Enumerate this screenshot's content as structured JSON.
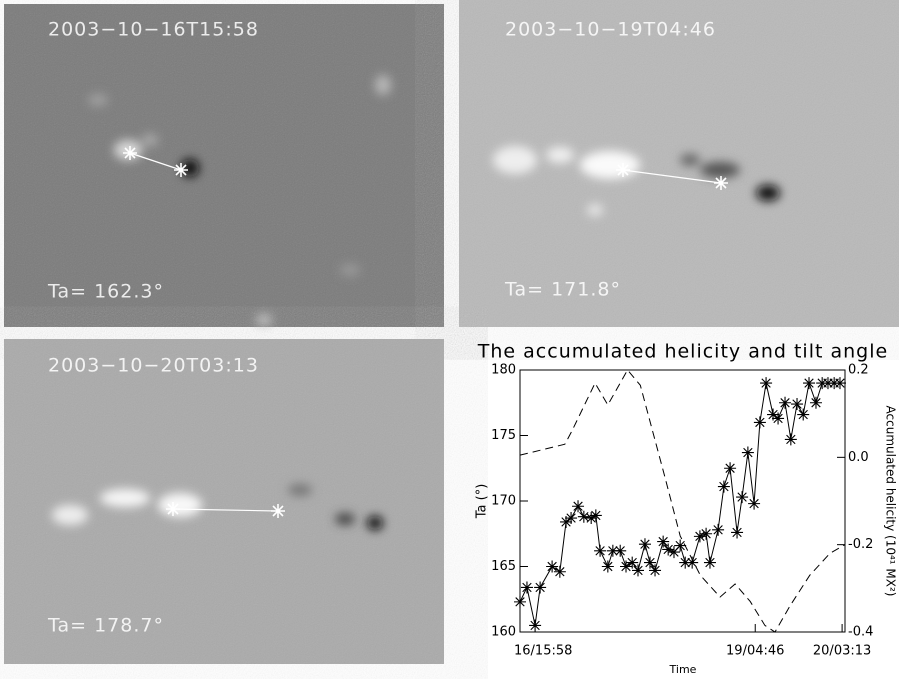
{
  "panels": [
    {
      "time": "2003−10−16T15:58",
      "tilt": "Ta= 162.3°"
    },
    {
      "time": "2003−10−19T04:46",
      "tilt": "Ta= 171.8°"
    },
    {
      "time": "2003−10−20T03:13",
      "tilt": "Ta= 178.7°"
    }
  ],
  "chart_data": {
    "type": "line",
    "title": "The accumulated helicity and tilt angle",
    "xlabel": "Time",
    "ylabel": "Ta (°)",
    "y2label": "Accumulated helicity (10⁴¹ MX²)",
    "xlim": [
      0,
      84
    ],
    "xticks": [
      {
        "value": 0,
        "label": "16/15:58"
      },
      {
        "value": 60.8,
        "label": "19/04:46"
      },
      {
        "value": 83.25,
        "label": "20/03:13"
      }
    ],
    "ylim": [
      160,
      180
    ],
    "yticks": [
      160,
      165,
      170,
      175,
      180
    ],
    "y2lim": [
      -0.4,
      0.2
    ],
    "y2ticks": [
      -0.4,
      -0.2,
      {
        "value": 0,
        "label": "0.0"
      },
      0.2
    ],
    "series": [
      {
        "color": "#000000",
        "style": "solid",
        "marker": "asterisk",
        "axis": "y",
        "x": [
          0,
          1.8,
          3.9,
          5.2,
          8.3,
          10.3,
          11.9,
          13.2,
          15.0,
          16.5,
          18.4,
          19.6,
          20.7,
          22.7,
          24.0,
          25.9,
          27.4,
          29.0,
          30.5,
          32.3,
          33.6,
          34.9,
          37.0,
          38.3,
          39.8,
          41.4,
          42.7,
          44.5,
          46.5,
          48.1,
          49.1,
          51.2,
          52.7,
          54.3,
          56.1,
          57.4,
          58.9,
          60.5,
          62.0,
          63.6,
          65.4,
          66.7,
          68.5,
          70.0,
          71.6,
          73.2,
          74.7,
          76.5,
          78.1,
          79.6,
          81.2,
          82.7
        ],
        "values": [
          162.3,
          163.4,
          160.5,
          163.4,
          165.0,
          164.6,
          168.4,
          168.7,
          169.6,
          168.8,
          168.7,
          168.9,
          166.2,
          165.0,
          166.2,
          166.2,
          165.0,
          165.3,
          164.7,
          166.7,
          165.3,
          164.7,
          166.9,
          166.3,
          166.1,
          166.6,
          165.3,
          165.3,
          167.3,
          167.5,
          165.3,
          167.8,
          171.1,
          172.5,
          167.6,
          170.3,
          173.7,
          169.8,
          176.0,
          179.0,
          176.6,
          176.3,
          177.5,
          174.7,
          177.4,
          176.6,
          179.0,
          177.5,
          179.0,
          179.0,
          179.0,
          179.0
        ]
      },
      {
        "color": "#000000",
        "style": "dashed",
        "axis": "y2",
        "x": [
          0,
          11.6,
          13.4,
          19.4,
          22.7,
          27.8,
          31.1,
          37.6,
          41.4,
          46.6,
          51.7,
          55.6,
          59.5,
          63.3,
          65.9,
          69.8,
          74.9,
          80.1,
          84.0
        ],
        "values": [
          0.005,
          0.03,
          0.06,
          0.17,
          0.12,
          0.2,
          0.165,
          -0.05,
          -0.18,
          -0.27,
          -0.32,
          -0.29,
          -0.33,
          -0.385,
          -0.4,
          -0.34,
          -0.27,
          -0.22,
          -0.2
        ]
      }
    ]
  }
}
